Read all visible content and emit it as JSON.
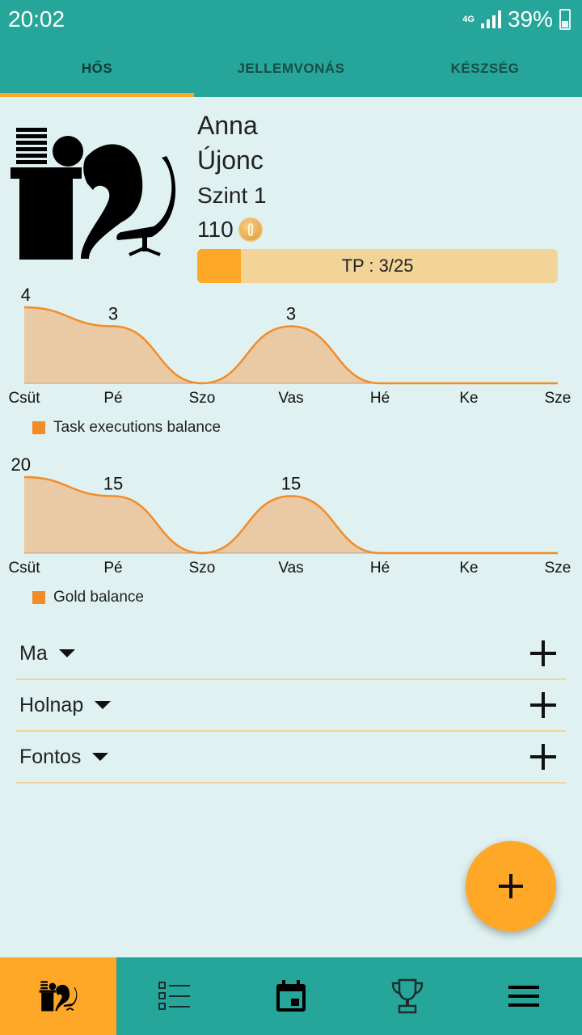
{
  "status_bar": {
    "time": "20:02",
    "network": "4G",
    "battery_percent": "39%"
  },
  "tabs": [
    {
      "label": "HŐS",
      "active": true
    },
    {
      "label": "JELLEMVONÁS",
      "active": false
    },
    {
      "label": "KÉSZSÉG",
      "active": false
    }
  ],
  "hero": {
    "name": "Anna",
    "rank": "Újonc",
    "level": "Szint 1",
    "gold": "110",
    "tp_label": "TP : 3/25",
    "tp_progress": 0.12
  },
  "chart_data": [
    {
      "type": "area",
      "categories": [
        "Csüt",
        "Pé",
        "Szo",
        "Vas",
        "Hé",
        "Ke",
        "Sze"
      ],
      "series": [
        {
          "name": "Task executions balance",
          "values": [
            4,
            3,
            0,
            3,
            0,
            0,
            0
          ]
        }
      ],
      "data_labels": [
        "4",
        "3",
        "",
        "3",
        "",
        "",
        ""
      ],
      "color": "#f28c28",
      "fill": "#eac9a5",
      "ylim": [
        0,
        4
      ],
      "legend": "bottom-left"
    },
    {
      "type": "area",
      "categories": [
        "Csüt",
        "Pé",
        "Szo",
        "Vas",
        "Hé",
        "Ke",
        "Sze"
      ],
      "series": [
        {
          "name": "Gold balance",
          "values": [
            20,
            15,
            0,
            15,
            0,
            0,
            0
          ]
        }
      ],
      "data_labels": [
        "20",
        "15",
        "",
        "15",
        "",
        "",
        ""
      ],
      "color": "#f28c28",
      "fill": "#eac9a5",
      "ylim": [
        0,
        20
      ],
      "legend": "bottom-left"
    }
  ],
  "sections": [
    {
      "label": "Ma"
    },
    {
      "label": "Holnap"
    },
    {
      "label": "Fontos"
    }
  ],
  "bottom_nav": [
    {
      "icon": "hero-icon",
      "active": true
    },
    {
      "icon": "task-list-icon",
      "active": false
    },
    {
      "icon": "calendar-icon",
      "active": false
    },
    {
      "icon": "trophy-icon",
      "active": false
    },
    {
      "icon": "menu-icon",
      "active": false
    }
  ],
  "colors": {
    "primary": "#26a69a",
    "accent": "#ffa726",
    "background": "#e0f1f1"
  }
}
